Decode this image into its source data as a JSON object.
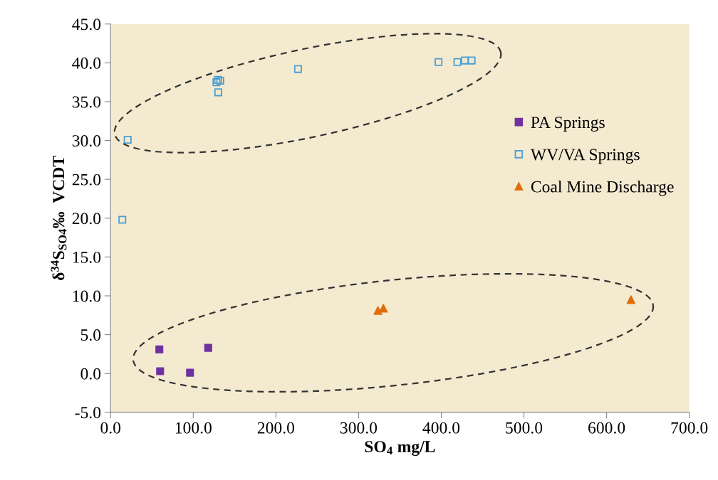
{
  "chart_data": {
    "type": "scatter",
    "xlabel": "SO$_{4}$ mg/L",
    "ylabel": "δ$^{34}$S$_{SO4}$‰  VCDT",
    "series": [
      {
        "name": "PA Springs",
        "color": "#7030a0",
        "marker": "square",
        "x": [
          59.0,
          59.9,
          96.1,
          118.1
        ],
        "values": [
          3.1,
          0.3,
          0.1,
          3.3
        ]
      },
      {
        "name": "WV/VA Springs",
        "color": "#4a9fd4",
        "marker": "square",
        "x": [
          14.2,
          20.7,
          128.1,
          130.0,
          132.6,
          130.3,
          226.8,
          396.7,
          419.5,
          428.5,
          436.7
        ],
        "values": [
          19.8,
          30.1,
          37.5,
          37.8,
          37.7,
          36.2,
          39.2,
          40.1,
          40.1,
          40.3,
          40.3
        ]
      },
      {
        "name": "Coal Mine Discharge",
        "color": "#e36c09",
        "marker": "triangle",
        "x": [
          323.4,
          330.0,
          629.5
        ],
        "values": [
          8.1,
          8.4,
          9.5
        ]
      }
    ],
    "xlim": [
      0,
      700
    ],
    "xticks": [
      {
        "value": 0,
        "label": "0.0"
      },
      {
        "value": 100,
        "label": "100.0"
      },
      {
        "value": 200,
        "label": "200.0"
      },
      {
        "value": 300,
        "label": "300.0"
      },
      {
        "value": 400,
        "label": "400.0"
      },
      {
        "value": 500,
        "label": "500.0"
      },
      {
        "value": 600,
        "label": "600.0"
      },
      {
        "value": 700,
        "label": "700.0"
      }
    ],
    "ylim": [
      -5,
      45
    ],
    "yticks": [
      {
        "value": -5,
        "label": "-5.0"
      },
      {
        "value": 0,
        "label": "0.0"
      },
      {
        "value": 5,
        "label": "5.0"
      },
      {
        "value": 10,
        "label": "10.0"
      },
      {
        "value": 15,
        "label": "15.0"
      },
      {
        "value": 20,
        "label": "20.0"
      },
      {
        "value": 25,
        "label": "25.0"
      },
      {
        "value": 30,
        "label": "30.0"
      },
      {
        "value": 35,
        "label": "35.0"
      },
      {
        "value": 40,
        "label": "40.0"
      },
      {
        "value": 45,
        "label": "45.0"
      }
    ],
    "grid": false,
    "legend": "right"
  }
}
